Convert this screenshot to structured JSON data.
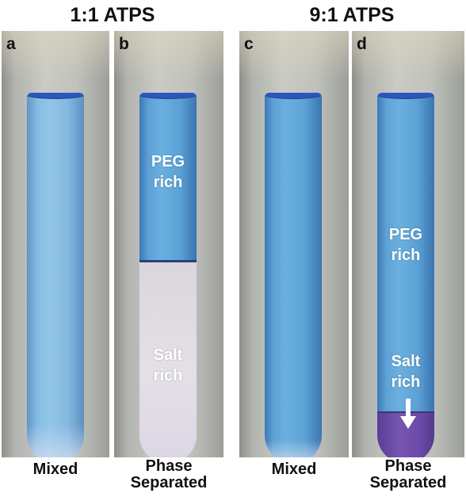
{
  "groups": [
    {
      "title": "1:1 ATPS"
    },
    {
      "title": "9:1 ATPS"
    }
  ],
  "panels": [
    {
      "letter": "a",
      "caption_line1": "Mixed",
      "caption_line2": ""
    },
    {
      "letter": "b",
      "caption_line1": "Phase",
      "caption_line2": "Separated",
      "top_label_line1": "PEG",
      "top_label_line2": "rich",
      "bottom_label_line1": "Salt",
      "bottom_label_line2": "rich"
    },
    {
      "letter": "c",
      "caption_line1": "Mixed",
      "caption_line2": ""
    },
    {
      "letter": "d",
      "caption_line1": "Phase",
      "caption_line2": "Separated",
      "top_label_line1": "PEG",
      "top_label_line2": "rich",
      "bottom_label_line1": "Salt",
      "bottom_label_line2": "rich"
    }
  ],
  "colors": {
    "peg_phase": "#5ea2d6",
    "salt_phase_1_1": "#e0dde3",
    "salt_phase_9_1": "#7755b1",
    "rim": "#2b56c0"
  }
}
